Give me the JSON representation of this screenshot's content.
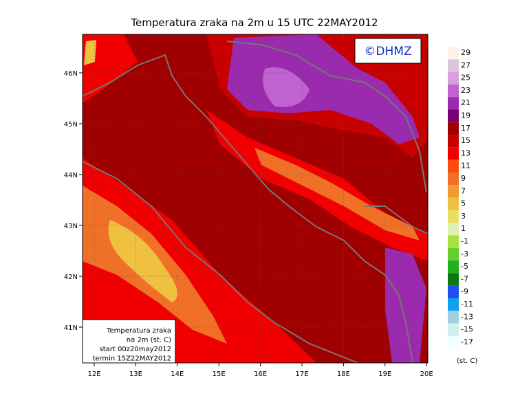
{
  "title": "Temperatura zraka na 2m u 15 UTC 22MAY2012",
  "watermark": "©DHMZ",
  "map": {
    "lat_labels": [
      "46N",
      "45N",
      "44N",
      "43N",
      "42N",
      "41N"
    ],
    "lon_labels": [
      "12E",
      "13E",
      "14E",
      "15E",
      "16E",
      "17E",
      "18E",
      "19E",
      "20E"
    ]
  },
  "legend": {
    "unit": "(st. C)",
    "items": [
      {
        "label": "29",
        "color": "#fff3e8"
      },
      {
        "label": "27",
        "color": "#dcc4dc"
      },
      {
        "label": "25",
        "color": "#d8a0dc"
      },
      {
        "label": "23",
        "color": "#c062d0"
      },
      {
        "label": "21",
        "color": "#9a2aae"
      },
      {
        "label": "19",
        "color": "#780070"
      },
      {
        "label": "17",
        "color": "#a00000"
      },
      {
        "label": "15",
        "color": "#c80000"
      },
      {
        "label": "13",
        "color": "#f00000"
      },
      {
        "label": "11",
        "color": "#ff4a10"
      },
      {
        "label": "9",
        "color": "#f07028"
      },
      {
        "label": "7",
        "color": "#f09a30"
      },
      {
        "label": "5",
        "color": "#f0c040"
      },
      {
        "label": "3",
        "color": "#e8e060"
      },
      {
        "label": "1",
        "color": "#e0f0b0"
      },
      {
        "label": "-1",
        "color": "#a8e040"
      },
      {
        "label": "-3",
        "color": "#60d030"
      },
      {
        "label": "-5",
        "color": "#20b020"
      },
      {
        "label": "-7",
        "color": "#107810"
      },
      {
        "label": "-9",
        "color": "#2050f0"
      },
      {
        "label": "-11",
        "color": "#10a0f0"
      },
      {
        "label": "-13",
        "color": "#a0d0e0"
      },
      {
        "label": "-15",
        "color": "#d0f0f0"
      },
      {
        "label": "-17",
        "color": "#f0ffff"
      }
    ]
  },
  "info_box": {
    "lines": [
      "Temperatura zraka",
      "na 2m (st. C)",
      "start 00z20may2012",
      "termin 15Z22MAY2012"
    ]
  }
}
